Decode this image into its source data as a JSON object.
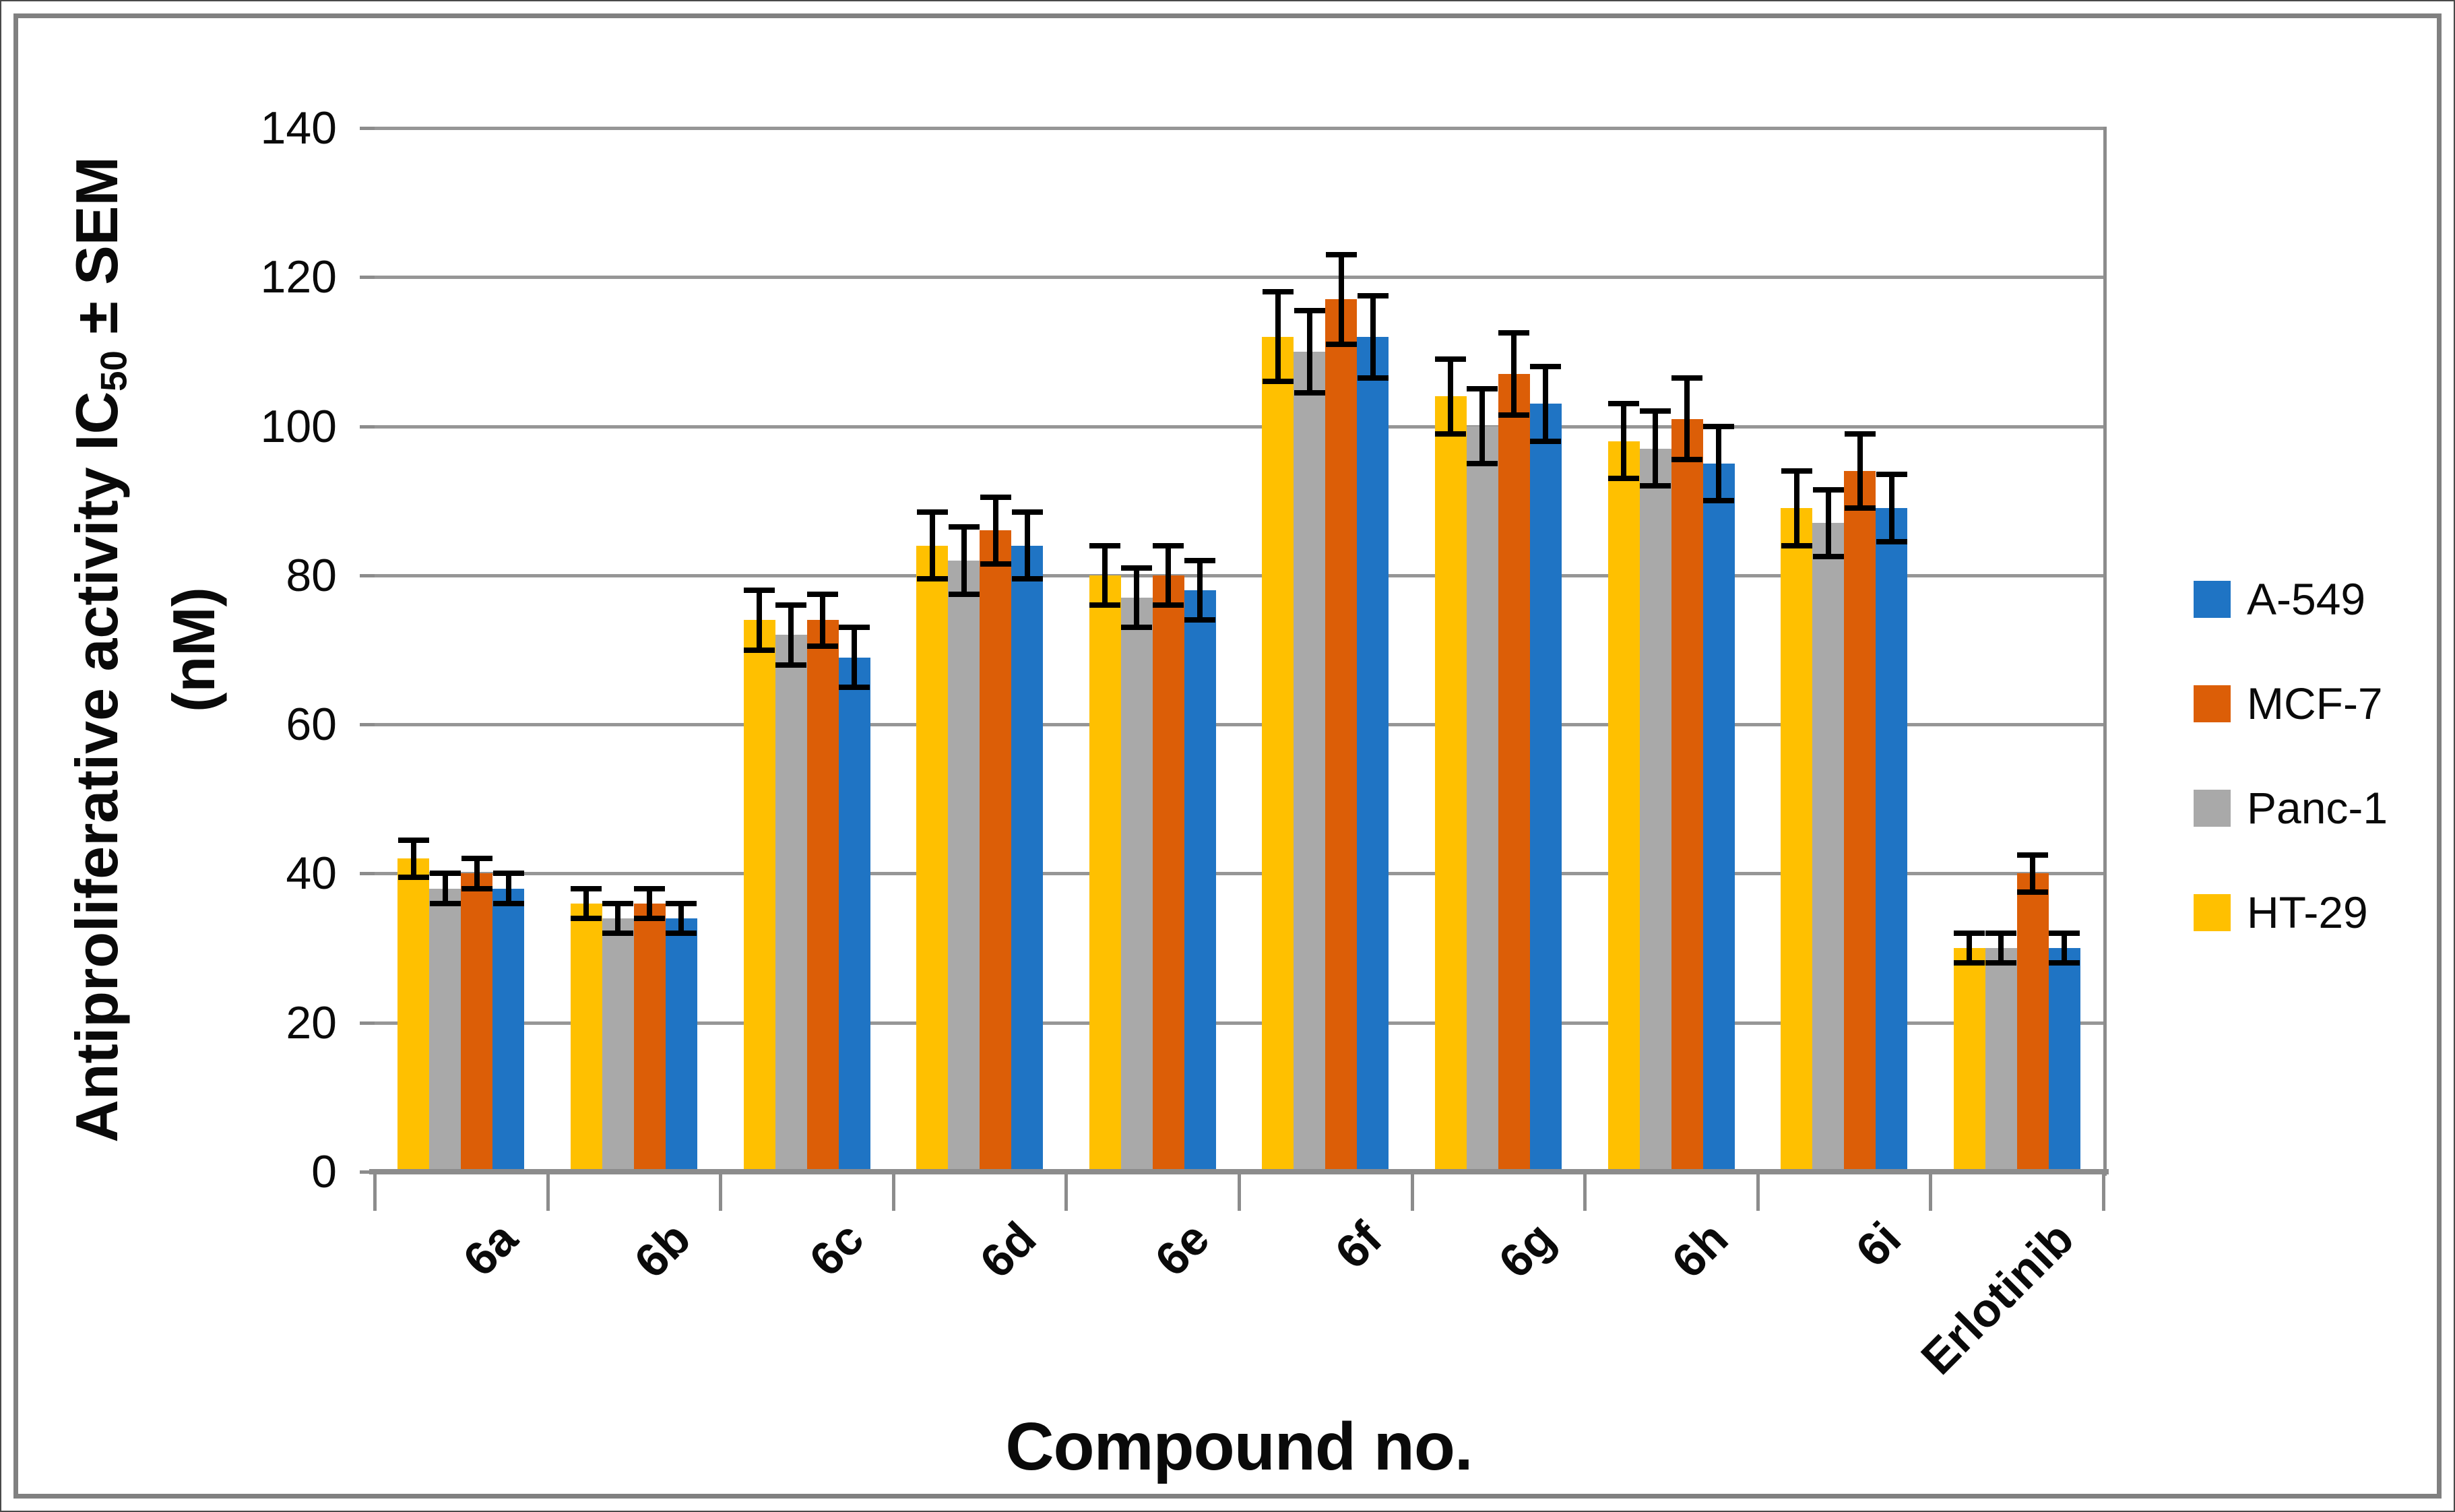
{
  "figure": {
    "background": "#FFFFFF",
    "border_color": "#808080"
  },
  "axes": {
    "y_title_prefix": "Antiproliferative activity IC",
    "y_title_subscript": "50",
    "y_title_suffix": " ± SEM",
    "y_title_line2": "(nM)",
    "x_title": "Compound no."
  },
  "legend": {
    "items": [
      {
        "label": "A-549",
        "color": "#1F74C4"
      },
      {
        "label": "MCF-7",
        "color": "#DC5E07"
      },
      {
        "label": "Panc-1",
        "color": "#A9A9A9"
      },
      {
        "label": "HT-29",
        "color": "#FFC000"
      }
    ]
  },
  "chart_data": {
    "type": "bar",
    "title": "",
    "xlabel": "Compound no.",
    "ylabel": "Antiproliferative activity IC50 ± SEM (nM)",
    "categories": [
      "6a",
      "6b",
      "6c",
      "6d",
      "6e",
      "6f",
      "6g",
      "6h",
      "6i",
      "Erlotinib"
    ],
    "series": [
      {
        "name": "A-549",
        "color": "#1F74C4",
        "values": [
          38,
          34,
          69,
          84,
          78,
          112,
          103,
          95,
          89,
          30
        ],
        "errors": [
          2,
          2,
          4,
          4.5,
          4,
          5.5,
          5,
          5,
          4.5,
          2
        ]
      },
      {
        "name": "MCF-7",
        "color": "#DC5E07",
        "values": [
          40,
          36,
          74,
          86,
          80,
          117,
          107,
          101,
          94,
          40
        ],
        "errors": [
          2,
          2,
          3.5,
          4.5,
          4,
          6,
          5.5,
          5.5,
          5,
          2.5
        ]
      },
      {
        "name": "Panc-1",
        "color": "#A9A9A9",
        "values": [
          38,
          34,
          72,
          82,
          77,
          110,
          100,
          97,
          87,
          30
        ],
        "errors": [
          2,
          2,
          4,
          4.5,
          4,
          5.5,
          5,
          5,
          4.5,
          2
        ]
      },
      {
        "name": "HT-29",
        "color": "#FFC000",
        "values": [
          42,
          36,
          74,
          84,
          80,
          112,
          104,
          98,
          89,
          30
        ],
        "errors": [
          2.5,
          2,
          4,
          4.5,
          4,
          6,
          5,
          5,
          5,
          2
        ]
      }
    ],
    "bar_draw_order": [
      "HT-29",
      "Panc-1",
      "MCF-7",
      "A-549"
    ],
    "error_bars": true,
    "ylim": [
      0,
      140
    ],
    "ytick_step": 20,
    "yticks": [
      0,
      20,
      40,
      60,
      80,
      100,
      120,
      140
    ],
    "grid": true,
    "legend_position": "right",
    "legend_order": [
      "A-549",
      "MCF-7",
      "Panc-1",
      "HT-29"
    ]
  }
}
